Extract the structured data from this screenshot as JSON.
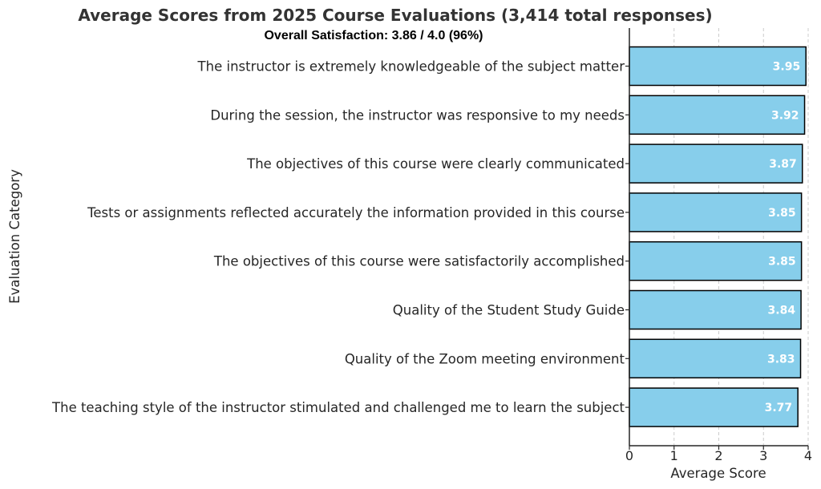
{
  "chart_data": {
    "type": "bar",
    "orientation": "horizontal",
    "title": "Average Scores from 2025 Course Evaluations (3,414 total responses)",
    "subtitle": "Overall Satisfaction: 3.86 / 4.0 (96%)",
    "xlabel": "Average Score",
    "ylabel": "Evaluation Category",
    "xlim": [
      0,
      4
    ],
    "xticks": [
      "0",
      "1",
      "2",
      "3",
      "4"
    ],
    "grid": true,
    "bar_color": "#87ceeb",
    "edge_color": "#000000",
    "categories": [
      "The instructor is extremely knowledgeable of the subject matter",
      "During the session, the instructor was responsive to my needs",
      "The objectives of this course were clearly communicated",
      "Tests or assignments reflected accurately the information provided in this course",
      "The objectives of this course were satisfactorily accomplished",
      "Quality of the Student Study Guide",
      "Quality of the Zoom meeting environment",
      "The teaching style of the instructor stimulated and challenged me to learn the subject"
    ],
    "values": [
      3.95,
      3.92,
      3.87,
      3.85,
      3.85,
      3.84,
      3.83,
      3.77
    ],
    "value_labels": [
      "3.95",
      "3.92",
      "3.87",
      "3.85",
      "3.85",
      "3.84",
      "3.83",
      "3.77"
    ]
  }
}
